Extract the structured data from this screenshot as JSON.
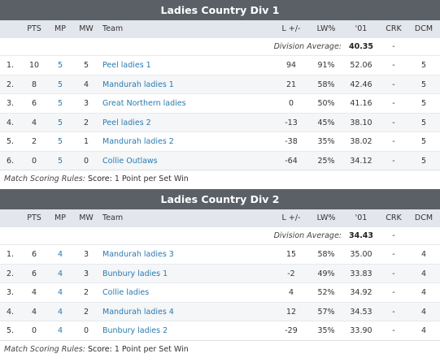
{
  "columns": {
    "pts": "PTS",
    "mp": "MP",
    "mw": "MW",
    "team": "Team",
    "diff": "L +/-",
    "lw": "LW%",
    "y01": "'01",
    "crk": "CRK",
    "dcm": "DCM"
  },
  "avg_label": "Division Average:",
  "rules_label": "Match Scoring Rules:",
  "score_label": "Score:",
  "colors": {
    "title_bar": "#5b6067",
    "header_row": "#e3e7ed",
    "link": "#2a7ab0"
  },
  "divisions": [
    {
      "title": "Ladies Country Div 1",
      "average": "40.35",
      "average_crk": "-",
      "rules_text": "1 Point per Set Win",
      "rows": [
        {
          "rank": "1.",
          "pts": "10",
          "mp": "5",
          "mw": "5",
          "team": "Peel ladies 1",
          "diff": "94",
          "lw": "91%",
          "y01": "52.06",
          "crk": "-",
          "dcm": "5"
        },
        {
          "rank": "2.",
          "pts": "8",
          "mp": "5",
          "mw": "4",
          "team": "Mandurah ladies 1",
          "diff": "21",
          "lw": "58%",
          "y01": "42.46",
          "crk": "-",
          "dcm": "5"
        },
        {
          "rank": "3.",
          "pts": "6",
          "mp": "5",
          "mw": "3",
          "team": "Great Northern ladies",
          "diff": "0",
          "lw": "50%",
          "y01": "41.16",
          "crk": "-",
          "dcm": "5"
        },
        {
          "rank": "4.",
          "pts": "4",
          "mp": "5",
          "mw": "2",
          "team": "Peel ladies 2",
          "diff": "-13",
          "lw": "45%",
          "y01": "38.10",
          "crk": "-",
          "dcm": "5"
        },
        {
          "rank": "5.",
          "pts": "2",
          "mp": "5",
          "mw": "1",
          "team": "Mandurah ladies 2",
          "diff": "-38",
          "lw": "35%",
          "y01": "38.02",
          "crk": "-",
          "dcm": "5"
        },
        {
          "rank": "6.",
          "pts": "0",
          "mp": "5",
          "mw": "0",
          "team": "Collie Outlaws",
          "diff": "-64",
          "lw": "25%",
          "y01": "34.12",
          "crk": "-",
          "dcm": "5"
        }
      ]
    },
    {
      "title": "Ladies Country Div 2",
      "average": "34.43",
      "average_crk": "-",
      "rules_text": "1 Point per Set Win",
      "rows": [
        {
          "rank": "1.",
          "pts": "6",
          "mp": "4",
          "mw": "3",
          "team": "Mandurah ladies 3",
          "diff": "15",
          "lw": "58%",
          "y01": "35.00",
          "crk": "-",
          "dcm": "4"
        },
        {
          "rank": "2.",
          "pts": "6",
          "mp": "4",
          "mw": "3",
          "team": "Bunbury ladies 1",
          "diff": "-2",
          "lw": "49%",
          "y01": "33.83",
          "crk": "-",
          "dcm": "4"
        },
        {
          "rank": "3.",
          "pts": "4",
          "mp": "4",
          "mw": "2",
          "team": "Collie ladies",
          "diff": "4",
          "lw": "52%",
          "y01": "34.92",
          "crk": "-",
          "dcm": "4"
        },
        {
          "rank": "4.",
          "pts": "4",
          "mp": "4",
          "mw": "2",
          "team": "Mandurah ladies 4",
          "diff": "12",
          "lw": "57%",
          "y01": "34.53",
          "crk": "-",
          "dcm": "4"
        },
        {
          "rank": "5.",
          "pts": "0",
          "mp": "4",
          "mw": "0",
          "team": "Bunbury ladies 2",
          "diff": "-29",
          "lw": "35%",
          "y01": "33.90",
          "crk": "-",
          "dcm": "4"
        }
      ]
    }
  ]
}
